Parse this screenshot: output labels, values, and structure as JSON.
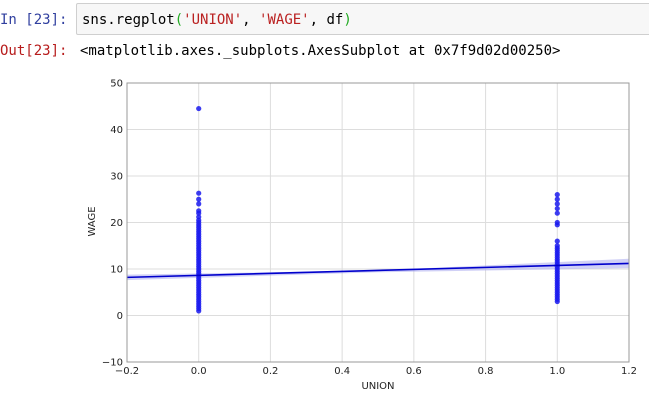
{
  "cell": {
    "in_prompt": "In [23]:",
    "out_prompt": "Out[23]:",
    "code": {
      "fn": "sns.regplot",
      "open": "(",
      "arg1": "'UNION'",
      "sep1": ", ",
      "arg2": "'WAGE'",
      "sep2": ", df",
      "close": ")"
    },
    "output": "<matplotlib.axes._subplots.AxesSubplot at 0x7f9d02d00250>"
  },
  "chart_data": {
    "type": "scatter",
    "xlabel": "UNION",
    "ylabel": "WAGE",
    "xlim": [
      -0.2,
      1.2
    ],
    "ylim": [
      -10,
      50
    ],
    "xticks": [
      "−0.2",
      "0.0",
      "0.2",
      "0.4",
      "0.6",
      "0.8",
      "1.0",
      "1.2"
    ],
    "xtick_values": [
      -0.2,
      0.0,
      0.2,
      0.4,
      0.6,
      0.8,
      1.0,
      1.2
    ],
    "yticks": [
      "−10",
      "0",
      "10",
      "20",
      "30",
      "40",
      "50"
    ],
    "ytick_values": [
      -10,
      0,
      10,
      20,
      30,
      40,
      50
    ],
    "grid": true,
    "point_color": "#1a1aee",
    "line_color": "#0000cc",
    "band_color": "#aaaaee",
    "points": {
      "x0": [
        44.5,
        26.3,
        25.0,
        24.0,
        22.5,
        22.0,
        21.2,
        20.5,
        20.0,
        19.5,
        19.0,
        18.5,
        18.0,
        17.5,
        17.0,
        16.5,
        16.0,
        15.5,
        15.0,
        14.5,
        14.0,
        13.5,
        13.0,
        12.5,
        12.0,
        11.5,
        11.0,
        10.5,
        10.0,
        9.5,
        9.0,
        8.5,
        8.0,
        7.5,
        7.0,
        6.5,
        6.0,
        5.5,
        5.0,
        4.5,
        4.0,
        3.5,
        3.0,
        2.5,
        2.0,
        1.5,
        1.0
      ],
      "x1": [
        26.0,
        25.0,
        24.0,
        23.0,
        22.0,
        20.0,
        19.5,
        16.0,
        15.0,
        14.5,
        14.0,
        13.5,
        13.0,
        12.5,
        12.0,
        11.5,
        11.0,
        10.5,
        10.0,
        9.5,
        9.0,
        8.5,
        8.0,
        7.5,
        7.0,
        6.5,
        6.0,
        5.5,
        5.0,
        4.5,
        4.0,
        3.5,
        3.0
      ]
    },
    "regression": {
      "x_start": -0.2,
      "x_end": 1.2,
      "y_start": 8.2,
      "y_end": 11.2,
      "band_low_start": 7.6,
      "band_high_start": 8.8,
      "band_low_mid": 9.3,
      "band_high_mid": 9.7,
      "band_low_end": 10.2,
      "band_high_end": 12.2
    }
  }
}
